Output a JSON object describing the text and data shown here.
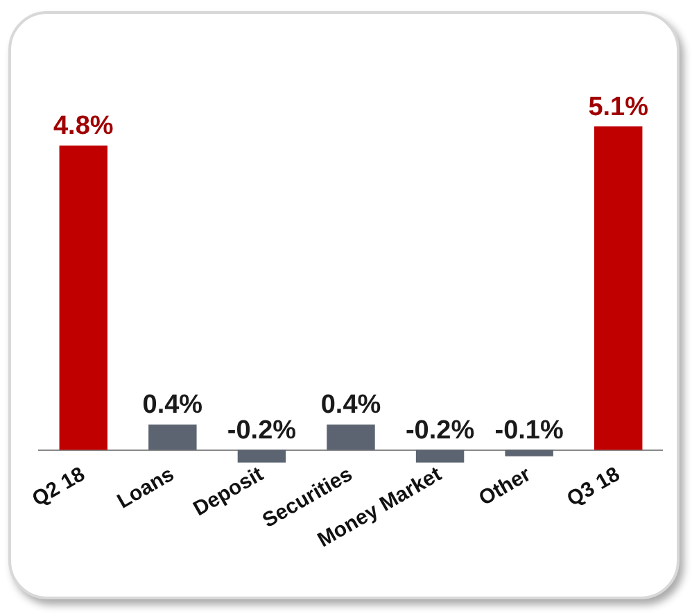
{
  "chart_data": {
    "type": "bar",
    "categories": [
      "Q2 18",
      "Loans",
      "Deposit",
      "Securities",
      "Money Market",
      "Other",
      "Q3 18"
    ],
    "values": [
      4.8,
      0.4,
      -0.2,
      0.4,
      -0.2,
      -0.1,
      5.1
    ],
    "colors": [
      "#c00000",
      "#5b6470",
      "#5b6470",
      "#5b6470",
      "#5b6470",
      "#5b6470",
      "#c00000"
    ],
    "value_labels": [
      "4.8%",
      "0.4%",
      "-0.2%",
      "0.4%",
      "-0.2%",
      "-0.1%",
      "5.1%"
    ],
    "grid": false,
    "legend": false
  }
}
